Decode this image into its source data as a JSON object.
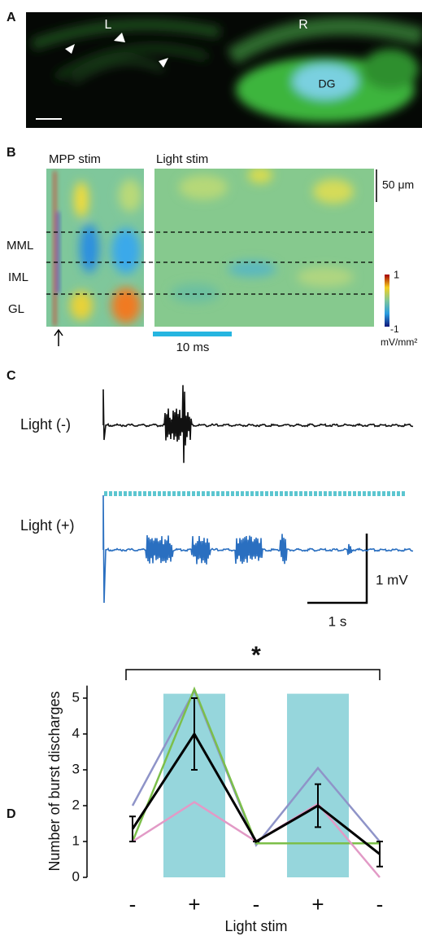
{
  "panel_a": {
    "label": "A",
    "left": "L",
    "right": "R",
    "region": "DG"
  },
  "panel_b": {
    "label": "B",
    "left_title": "MPP stim",
    "right_title": "Light stim",
    "layers": [
      "MML",
      "IML",
      "GL"
    ],
    "depth_scale": "50 μm",
    "time_scale": "10 ms",
    "colorbar": {
      "max": 1,
      "min": -1,
      "unit": "mV/mm²"
    }
  },
  "panel_c": {
    "label": "C",
    "trace_off": "Light (-)",
    "trace_on": "Light (+)",
    "voltage_scale": "1 mV",
    "time_scale": "1 s"
  },
  "panel_d": {
    "label": "D"
  },
  "chart_data": {
    "type": "line",
    "ylabel": "Number of burst discharges",
    "xlabel": "Light stim",
    "categories": [
      "-",
      "+",
      "-",
      "+",
      "-"
    ],
    "series": [
      {
        "color": "#8f94c8",
        "values": [
          2,
          5.2,
          0.9,
          3.05,
          1
        ]
      },
      {
        "color": "#7cbf4a",
        "values": [
          1,
          5.25,
          0.95,
          0.95,
          0.95
        ]
      },
      {
        "color": "#e29ac6",
        "values": [
          1,
          2.1,
          1,
          2.05,
          0
        ]
      },
      {
        "color": "#000000",
        "values": [
          1.35,
          4,
          1,
          2,
          0.65
        ],
        "errors": [
          0.35,
          1,
          0,
          0.6,
          0.35
        ]
      }
    ],
    "highlight": {
      "categories": [
        1,
        3
      ],
      "color": "#96d6dc"
    },
    "significance": "*",
    "ylim": [
      0,
      5.35
    ],
    "yticks": [
      0,
      1,
      2,
      3,
      4,
      5
    ]
  }
}
